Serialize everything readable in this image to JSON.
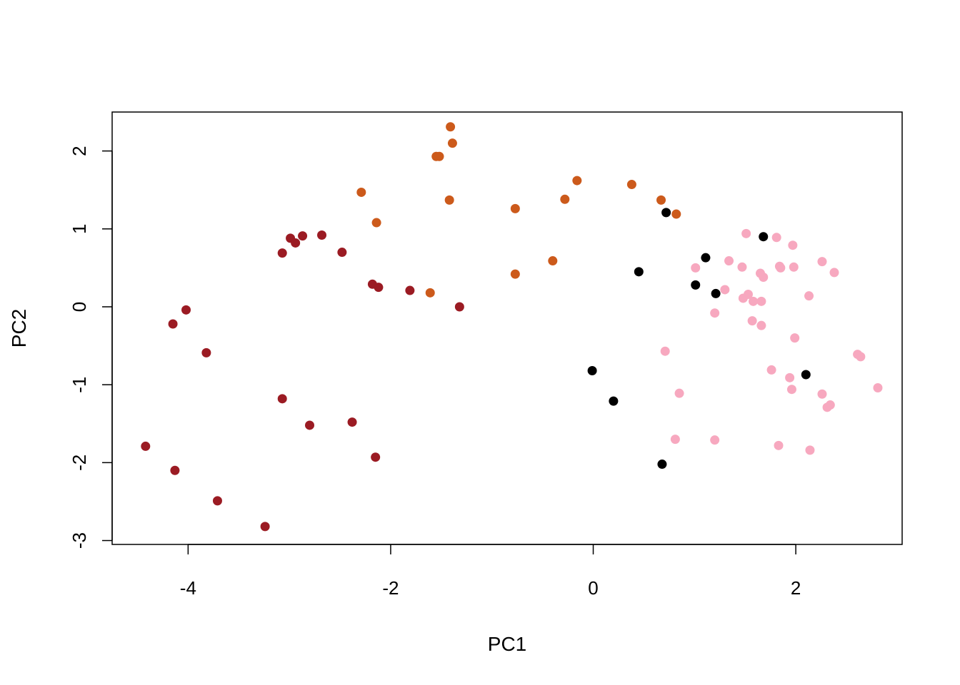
{
  "chart_data": {
    "type": "scatter",
    "title": "",
    "xlabel": "PC1",
    "ylabel": "PC2",
    "xlim": [
      -4.75,
      3.05
    ],
    "ylim": [
      -3.05,
      2.5
    ],
    "x_ticks": [
      -4,
      -2,
      0,
      2
    ],
    "y_ticks": [
      -3,
      -2,
      -1,
      0,
      1,
      2
    ],
    "x_tick_labels": [
      "-4",
      "-2",
      "0",
      "2"
    ],
    "y_tick_labels": [
      "-3",
      "-2",
      "-1",
      "0",
      "1",
      "2"
    ],
    "grid": false,
    "legend": "none",
    "series": [
      {
        "color": "#9b1b23",
        "points": [
          [
            -4.42,
            -1.79
          ],
          [
            -4.13,
            -2.1
          ],
          [
            -4.15,
            -0.22
          ],
          [
            -4.02,
            -0.04
          ],
          [
            -3.82,
            -0.59
          ],
          [
            -3.71,
            -2.49
          ],
          [
            -3.24,
            -2.82
          ],
          [
            -3.07,
            0.69
          ],
          [
            -3.07,
            -1.18
          ],
          [
            -2.99,
            0.88
          ],
          [
            -2.94,
            0.82
          ],
          [
            -2.87,
            0.91
          ],
          [
            -2.8,
            -1.52
          ],
          [
            -2.68,
            0.92
          ],
          [
            -2.48,
            0.7
          ],
          [
            -2.38,
            -1.48
          ],
          [
            -2.18,
            0.29
          ],
          [
            -2.15,
            -1.93
          ],
          [
            -2.12,
            0.25
          ],
          [
            -1.81,
            0.21
          ],
          [
            -1.32,
            0.0
          ]
        ]
      },
      {
        "color": "#cc5a1b",
        "points": [
          [
            -2.29,
            1.47
          ],
          [
            -2.14,
            1.08
          ],
          [
            -1.61,
            0.18
          ],
          [
            -1.55,
            1.93
          ],
          [
            -1.52,
            1.93
          ],
          [
            -1.42,
            1.37
          ],
          [
            -1.41,
            2.31
          ],
          [
            -1.39,
            2.1
          ],
          [
            -0.77,
            1.26
          ],
          [
            -0.77,
            0.42
          ],
          [
            -0.4,
            0.59
          ],
          [
            -0.28,
            1.38
          ],
          [
            -0.16,
            1.62
          ],
          [
            0.38,
            1.57
          ],
          [
            0.67,
            1.37
          ],
          [
            0.82,
            1.19
          ]
        ]
      },
      {
        "color": "#000000",
        "points": [
          [
            -0.01,
            -0.82
          ],
          [
            0.2,
            -1.21
          ],
          [
            0.45,
            0.45
          ],
          [
            0.68,
            -2.02
          ],
          [
            0.72,
            1.21
          ],
          [
            1.01,
            0.28
          ],
          [
            1.11,
            0.63
          ],
          [
            1.21,
            0.17
          ],
          [
            1.68,
            0.9
          ],
          [
            2.1,
            -0.87
          ]
        ]
      },
      {
        "color": "#f7a8bf",
        "points": [
          [
            0.71,
            -0.57
          ],
          [
            0.81,
            -1.7
          ],
          [
            0.85,
            -1.11
          ],
          [
            1.01,
            0.5
          ],
          [
            1.2,
            -0.08
          ],
          [
            1.2,
            -1.71
          ],
          [
            1.3,
            0.22
          ],
          [
            1.34,
            0.59
          ],
          [
            1.47,
            0.51
          ],
          [
            1.48,
            0.11
          ],
          [
            1.51,
            0.94
          ],
          [
            1.53,
            0.16
          ],
          [
            1.57,
            -0.18
          ],
          [
            1.58,
            0.07
          ],
          [
            1.65,
            0.43
          ],
          [
            1.66,
            0.07
          ],
          [
            1.66,
            -0.24
          ],
          [
            1.68,
            0.38
          ],
          [
            1.76,
            -0.81
          ],
          [
            1.81,
            0.89
          ],
          [
            1.83,
            -1.78
          ],
          [
            1.84,
            0.52
          ],
          [
            1.85,
            0.5
          ],
          [
            1.94,
            -0.91
          ],
          [
            1.96,
            -1.06
          ],
          [
            1.97,
            0.79
          ],
          [
            1.98,
            0.51
          ],
          [
            1.99,
            -0.4
          ],
          [
            2.13,
            0.14
          ],
          [
            2.14,
            -1.84
          ],
          [
            2.26,
            -1.12
          ],
          [
            2.26,
            0.58
          ],
          [
            2.31,
            -1.29
          ],
          [
            2.34,
            -1.26
          ],
          [
            2.38,
            0.44
          ],
          [
            2.61,
            -0.61
          ],
          [
            2.64,
            -0.64
          ],
          [
            2.81,
            -1.04
          ]
        ]
      }
    ]
  }
}
